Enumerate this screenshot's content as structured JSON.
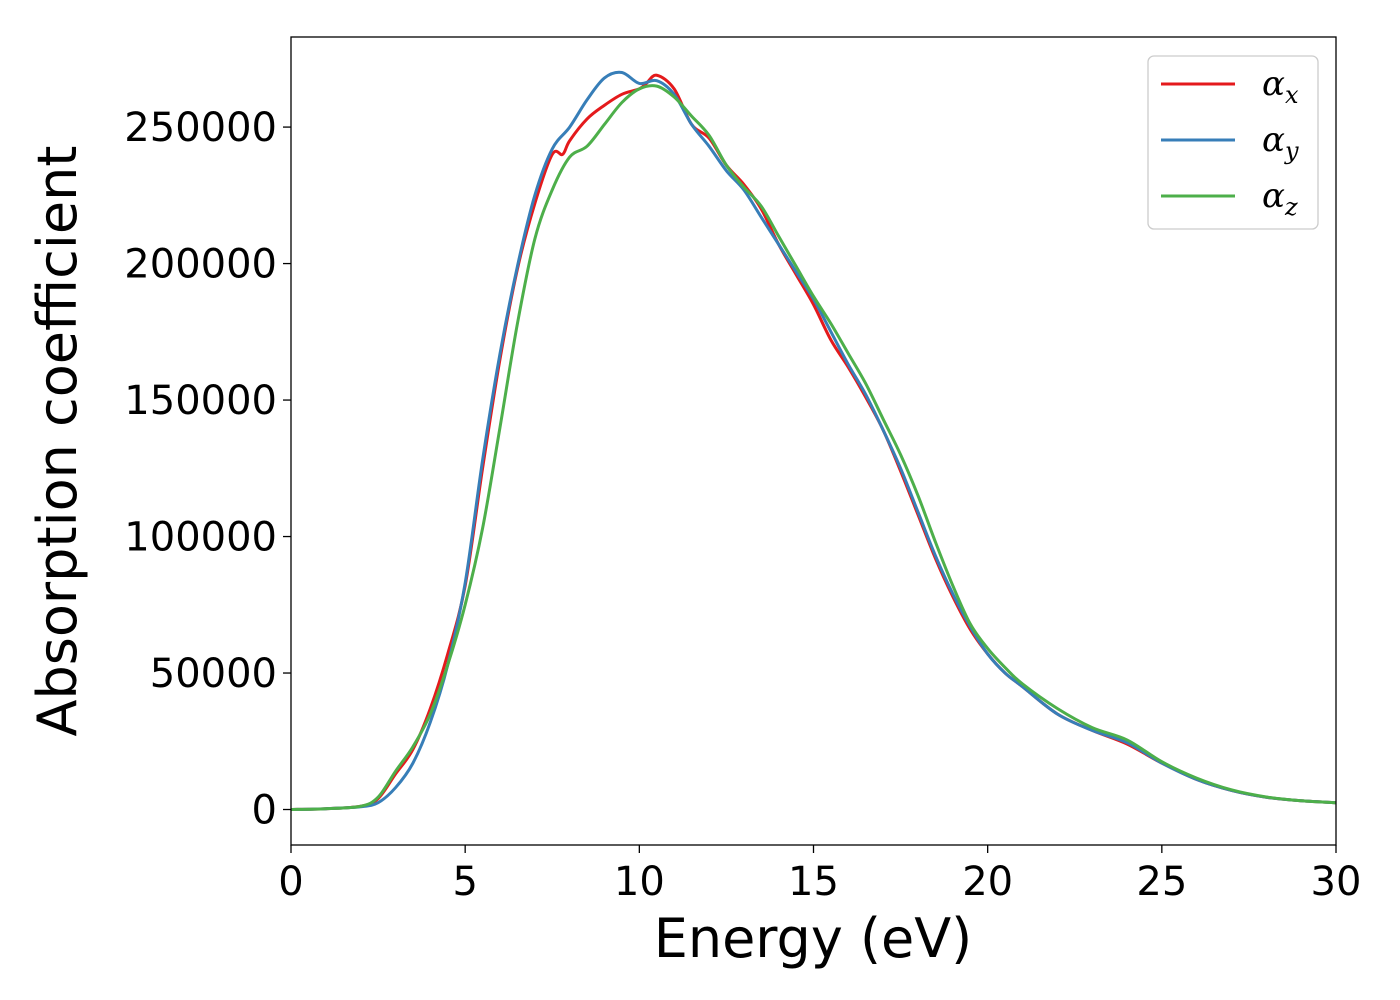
{
  "chart_data": {
    "type": "line",
    "title": "",
    "xlabel": "Energy (eV)",
    "ylabel": "Absorption coefficient",
    "xlim": [
      0,
      30
    ],
    "ylim": [
      -13000,
      283000
    ],
    "xticks": [
      "0",
      "5",
      "10",
      "15",
      "20",
      "25",
      "30"
    ],
    "yticks": [
      "0",
      "50000",
      "100000",
      "150000",
      "200000",
      "250000"
    ],
    "grid": false,
    "legend_position": "top-right",
    "series": [
      {
        "name": "α",
        "subscript": "x",
        "color": "#e41a1c",
        "x": [
          0,
          1,
          2,
          2.5,
          3,
          3.5,
          4,
          4.5,
          5,
          5.5,
          6,
          6.5,
          7,
          7.5,
          7.8,
          8,
          8.5,
          9,
          9.5,
          10,
          10.2,
          10.5,
          11,
          11.5,
          12,
          12.5,
          13,
          13.5,
          14,
          14.5,
          15,
          15.5,
          16,
          16.5,
          17,
          17.5,
          18,
          18.5,
          19,
          19.5,
          20,
          20.5,
          21,
          22,
          23,
          24,
          25,
          26,
          27,
          28,
          29,
          30
        ],
        "y": [
          0,
          300,
          1200,
          4000,
          13000,
          22000,
          37000,
          57000,
          82000,
          125000,
          165000,
          198000,
          222000,
          240000,
          240000,
          245000,
          253000,
          258000,
          262000,
          264000,
          266000,
          269000,
          264000,
          251000,
          246000,
          236000,
          229000,
          220000,
          207000,
          196000,
          185000,
          172000,
          162000,
          151000,
          139000,
          124000,
          108000,
          92000,
          78000,
          66000,
          57000,
          50000,
          45000,
          35000,
          29000,
          24000,
          17000,
          11000,
          7000,
          4500,
          3200,
          2500
        ]
      },
      {
        "name": "α",
        "subscript": "y",
        "color": "#377eb8",
        "x": [
          0,
          1,
          2,
          2.5,
          3,
          3.5,
          4,
          4.5,
          5,
          5.5,
          6,
          6.5,
          7,
          7.5,
          8,
          8.5,
          9,
          9.5,
          10,
          10.5,
          11,
          11.5,
          12,
          12.5,
          13,
          13.5,
          14,
          14.5,
          15,
          15.5,
          16,
          16.5,
          17,
          17.5,
          18,
          18.5,
          19,
          19.5,
          20,
          20.5,
          21,
          22,
          23,
          24,
          25,
          26,
          27,
          28,
          29,
          30
        ],
        "y": [
          0,
          300,
          1000,
          2500,
          8000,
          17000,
          32000,
          53000,
          83000,
          128000,
          167000,
          199000,
          225000,
          242000,
          250000,
          260000,
          268000,
          270000,
          266000,
          267000,
          262000,
          251000,
          243000,
          234000,
          227000,
          217000,
          207000,
          197000,
          187000,
          175000,
          163000,
          152000,
          139000,
          125000,
          109000,
          93000,
          79000,
          67000,
          57000,
          50000,
          45000,
          35000,
          29000,
          24500,
          17000,
          11000,
          7000,
          4500,
          3200,
          2500
        ]
      },
      {
        "name": "α",
        "subscript": "z",
        "color": "#4daf4a",
        "x": [
          0,
          1,
          2,
          2.5,
          3,
          3.5,
          4,
          4.5,
          5,
          5.5,
          6,
          6.5,
          7,
          7.5,
          8,
          8.5,
          9,
          9.5,
          10,
          10.5,
          11,
          11.5,
          12,
          12.5,
          13,
          13.5,
          14,
          14.5,
          15,
          15.5,
          16,
          16.5,
          17,
          17.5,
          18,
          18.5,
          19,
          19.5,
          20,
          20.5,
          21,
          22,
          23,
          24,
          25,
          26,
          27,
          28,
          29,
          30
        ],
        "y": [
          0,
          300,
          1200,
          4500,
          14000,
          23000,
          35000,
          53000,
          75000,
          103000,
          140000,
          178000,
          209000,
          227000,
          239000,
          243000,
          251000,
          259000,
          264000,
          265000,
          261000,
          254000,
          247000,
          236000,
          228000,
          221000,
          210000,
          199000,
          188000,
          178000,
          167000,
          156000,
          143000,
          130000,
          115000,
          98000,
          82000,
          68000,
          59000,
          52000,
          46000,
          37000,
          30000,
          25500,
          17500,
          11500,
          7200,
          4600,
          3200,
          2500
        ]
      }
    ]
  }
}
